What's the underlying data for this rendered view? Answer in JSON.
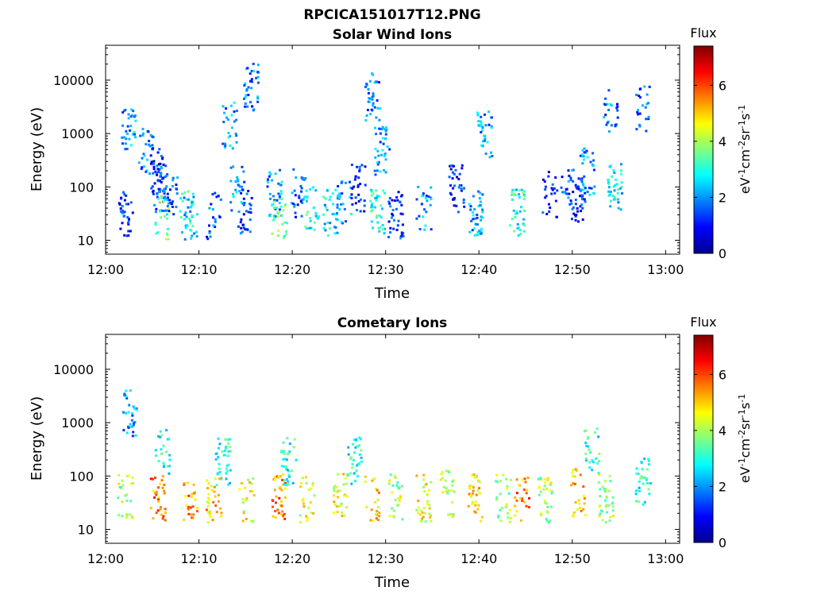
{
  "figure": {
    "title": "RPCICA151017T12.PNG"
  },
  "colors": {
    "colormap": [
      "#00008f",
      "#0000ff",
      "#0080ff",
      "#00ffff",
      "#80ff80",
      "#ffff00",
      "#ff8000",
      "#ff0000",
      "#800000"
    ],
    "axis": "#000000",
    "background": "#ffffff"
  },
  "chart_data": [
    {
      "type": "heatmap",
      "title": "Solar Wind Ions",
      "xlabel": "Time",
      "ylabel": "Energy (eV)",
      "x_tick_labels": [
        "12:00",
        "12:10",
        "12:20",
        "12:30",
        "12:40",
        "12:50",
        "13:00"
      ],
      "x_range_minutes": [
        0,
        61.5
      ],
      "y_scale": "log",
      "y_range": [
        5.5,
        45000
      ],
      "y_ticks": [
        10,
        100,
        1000,
        10000
      ],
      "y_tick_labels": [
        "10",
        "100",
        "1000",
        "10000"
      ],
      "colorbar": {
        "title": "Flux",
        "label": "eV-1cm-2sr-1s-1",
        "ticks": [
          0,
          2,
          4,
          6
        ],
        "range": [
          0,
          7.4
        ]
      },
      "clusters": [
        {
          "t": 2.0,
          "e": 35,
          "flux": 1.0
        },
        {
          "t": 2.3,
          "e": 1500,
          "flux": 2.0
        },
        {
          "t": 4.2,
          "e": 500,
          "flux": 1.8
        },
        {
          "t": 5.5,
          "e": 200,
          "flux": 1.0
        },
        {
          "t": 5.8,
          "e": 100,
          "flux": 1.5
        },
        {
          "t": 6.0,
          "e": 30,
          "flux": 3.5
        },
        {
          "t": 6.8,
          "e": 60,
          "flux": 1.5
        },
        {
          "t": 8.5,
          "e": 35,
          "flux": 3.0
        },
        {
          "t": 9.0,
          "e": 30,
          "flux": 2.5
        },
        {
          "t": 11.5,
          "e": 30,
          "flux": 1.5
        },
        {
          "t": 13.2,
          "e": 1500,
          "flux": 2.0
        },
        {
          "t": 14.0,
          "e": 100,
          "flux": 2.0
        },
        {
          "t": 14.8,
          "e": 40,
          "flux": 1.2
        },
        {
          "t": 15.5,
          "e": 8000,
          "flux": 1.8
        },
        {
          "t": 18.0,
          "e": 80,
          "flux": 2.0
        },
        {
          "t": 18.5,
          "e": 30,
          "flux": 3.5
        },
        {
          "t": 20.5,
          "e": 80,
          "flux": 1.5
        },
        {
          "t": 22.0,
          "e": 40,
          "flux": 3.0
        },
        {
          "t": 24.0,
          "e": 35,
          "flux": 2.5
        },
        {
          "t": 25.5,
          "e": 50,
          "flux": 2.0
        },
        {
          "t": 27.0,
          "e": 100,
          "flux": 1.0
        },
        {
          "t": 28.5,
          "e": 5000,
          "flux": 1.8
        },
        {
          "t": 29.0,
          "e": 40,
          "flux": 3.0
        },
        {
          "t": 29.5,
          "e": 500,
          "flux": 2.0
        },
        {
          "t": 31.0,
          "e": 30,
          "flux": 1.2
        },
        {
          "t": 34.0,
          "e": 40,
          "flux": 2.0
        },
        {
          "t": 37.5,
          "e": 100,
          "flux": 1.0
        },
        {
          "t": 39.5,
          "e": 35,
          "flux": 2.0
        },
        {
          "t": 40.5,
          "e": 1000,
          "flux": 2.0
        },
        {
          "t": 44.0,
          "e": 35,
          "flux": 3.0
        },
        {
          "t": 47.5,
          "e": 80,
          "flux": 1.0
        },
        {
          "t": 49.5,
          "e": 100,
          "flux": 1.5
        },
        {
          "t": 50.5,
          "e": 60,
          "flux": 1.0
        },
        {
          "t": 51.5,
          "e": 200,
          "flux": 2.0
        },
        {
          "t": 54.0,
          "e": 3000,
          "flux": 1.8
        },
        {
          "t": 54.5,
          "e": 100,
          "flux": 2.5
        },
        {
          "t": 57.5,
          "e": 3000,
          "flux": 1.5
        }
      ]
    },
    {
      "type": "heatmap",
      "title": "Cometary Ions",
      "xlabel": "Time",
      "ylabel": "Energy (eV)",
      "x_tick_labels": [
        "12:00",
        "12:10",
        "12:20",
        "12:30",
        "12:40",
        "12:50",
        "13:00"
      ],
      "x_range_minutes": [
        0,
        61.5
      ],
      "y_scale": "log",
      "y_range": [
        5.5,
        45000
      ],
      "y_ticks": [
        10,
        100,
        1000,
        10000
      ],
      "y_tick_labels": [
        "10",
        "100",
        "1000",
        "10000"
      ],
      "colorbar": {
        "title": "Flux",
        "label": "eV-1cm-2sr-1s-1",
        "ticks": [
          0,
          2,
          4,
          6
        ],
        "range": [
          0,
          7.4
        ]
      },
      "clusters": [
        {
          "t": 2.0,
          "e": 40,
          "flux": 4.0
        },
        {
          "t": 2.5,
          "e": 1500,
          "flux": 2.0
        },
        {
          "t": 5.5,
          "e": 40,
          "flux": 5.5
        },
        {
          "t": 6.0,
          "e": 300,
          "flux": 3.0
        },
        {
          "t": 9.0,
          "e": 35,
          "flux": 5.5
        },
        {
          "t": 11.5,
          "e": 40,
          "flux": 5.0
        },
        {
          "t": 12.5,
          "e": 200,
          "flux": 3.0
        },
        {
          "t": 15.0,
          "e": 40,
          "flux": 4.5
        },
        {
          "t": 18.5,
          "e": 40,
          "flux": 5.5
        },
        {
          "t": 19.5,
          "e": 200,
          "flux": 3.0
        },
        {
          "t": 21.5,
          "e": 40,
          "flux": 4.5
        },
        {
          "t": 25.0,
          "e": 50,
          "flux": 4.5
        },
        {
          "t": 26.5,
          "e": 200,
          "flux": 3.0
        },
        {
          "t": 28.5,
          "e": 40,
          "flux": 5.0
        },
        {
          "t": 31.0,
          "e": 40,
          "flux": 4.0
        },
        {
          "t": 34.0,
          "e": 40,
          "flux": 4.5
        },
        {
          "t": 36.5,
          "e": 50,
          "flux": 4.0
        },
        {
          "t": 39.5,
          "e": 40,
          "flux": 5.0
        },
        {
          "t": 42.5,
          "e": 40,
          "flux": 4.0
        },
        {
          "t": 44.5,
          "e": 40,
          "flux": 5.5
        },
        {
          "t": 47.0,
          "e": 40,
          "flux": 4.0
        },
        {
          "t": 50.5,
          "e": 50,
          "flux": 5.0
        },
        {
          "t": 52.0,
          "e": 300,
          "flux": 3.0
        },
        {
          "t": 53.5,
          "e": 40,
          "flux": 4.0
        },
        {
          "t": 57.5,
          "e": 80,
          "flux": 3.0
        }
      ]
    }
  ]
}
